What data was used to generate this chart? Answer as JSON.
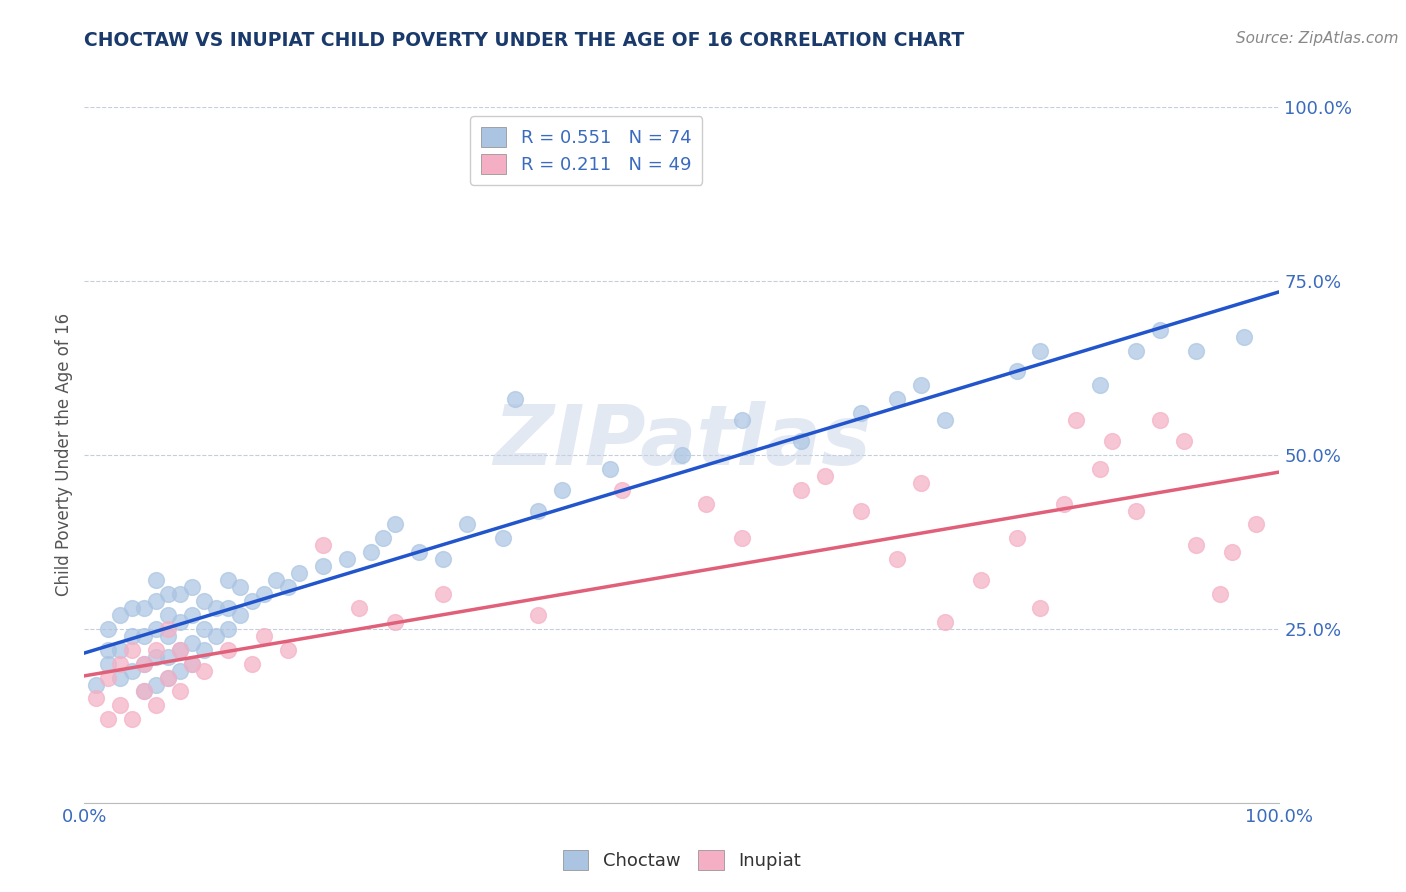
{
  "title": "CHOCTAW VS INUPIAT CHILD POVERTY UNDER THE AGE OF 16 CORRELATION CHART",
  "source": "Source: ZipAtlas.com",
  "ylabel": "Child Poverty Under the Age of 16",
  "xlim": [
    0,
    1
  ],
  "ylim": [
    0,
    1
  ],
  "r_choctaw": 0.551,
  "n_choctaw": 74,
  "r_inupiat": 0.211,
  "n_inupiat": 49,
  "choctaw_color": "#aac4e2",
  "inupiat_color": "#f5afc4",
  "choctaw_line_color": "#2255cc",
  "inupiat_line_color": "#e0607a",
  "title_color": "#1a3a6b",
  "tick_color": "#3a6bbf",
  "watermark": "ZIPatlas",
  "watermark_color": "#c8d4e8",
  "legend_label_choctaw": "Choctaw",
  "legend_label_inupiat": "Inupiat",
  "choctaw_x": [
    0.01,
    0.02,
    0.02,
    0.02,
    0.03,
    0.03,
    0.03,
    0.04,
    0.04,
    0.04,
    0.05,
    0.05,
    0.05,
    0.05,
    0.06,
    0.06,
    0.06,
    0.06,
    0.06,
    0.07,
    0.07,
    0.07,
    0.07,
    0.07,
    0.08,
    0.08,
    0.08,
    0.08,
    0.09,
    0.09,
    0.09,
    0.09,
    0.1,
    0.1,
    0.1,
    0.11,
    0.11,
    0.12,
    0.12,
    0.12,
    0.13,
    0.13,
    0.14,
    0.15,
    0.16,
    0.17,
    0.18,
    0.2,
    0.22,
    0.24,
    0.25,
    0.26,
    0.28,
    0.3,
    0.32,
    0.35,
    0.36,
    0.38,
    0.4,
    0.44,
    0.5,
    0.55,
    0.6,
    0.65,
    0.68,
    0.7,
    0.72,
    0.78,
    0.8,
    0.85,
    0.88,
    0.9,
    0.93,
    0.97
  ],
  "choctaw_y": [
    0.17,
    0.2,
    0.22,
    0.25,
    0.18,
    0.22,
    0.27,
    0.19,
    0.24,
    0.28,
    0.16,
    0.2,
    0.24,
    0.28,
    0.17,
    0.21,
    0.25,
    0.29,
    0.32,
    0.18,
    0.21,
    0.24,
    0.27,
    0.3,
    0.19,
    0.22,
    0.26,
    0.3,
    0.2,
    0.23,
    0.27,
    0.31,
    0.22,
    0.25,
    0.29,
    0.24,
    0.28,
    0.25,
    0.28,
    0.32,
    0.27,
    0.31,
    0.29,
    0.3,
    0.32,
    0.31,
    0.33,
    0.34,
    0.35,
    0.36,
    0.38,
    0.4,
    0.36,
    0.35,
    0.4,
    0.38,
    0.58,
    0.42,
    0.45,
    0.48,
    0.5,
    0.55,
    0.52,
    0.56,
    0.58,
    0.6,
    0.55,
    0.62,
    0.65,
    0.6,
    0.65,
    0.68,
    0.65,
    0.67
  ],
  "inupiat_x": [
    0.01,
    0.02,
    0.02,
    0.03,
    0.03,
    0.04,
    0.04,
    0.05,
    0.05,
    0.06,
    0.06,
    0.07,
    0.07,
    0.08,
    0.08,
    0.09,
    0.1,
    0.12,
    0.14,
    0.15,
    0.17,
    0.2,
    0.23,
    0.26,
    0.3,
    0.38,
    0.45,
    0.52,
    0.55,
    0.6,
    0.62,
    0.65,
    0.68,
    0.7,
    0.72,
    0.75,
    0.78,
    0.8,
    0.82,
    0.83,
    0.85,
    0.86,
    0.88,
    0.9,
    0.92,
    0.93,
    0.95,
    0.96,
    0.98
  ],
  "inupiat_y": [
    0.15,
    0.12,
    0.18,
    0.14,
    0.2,
    0.12,
    0.22,
    0.16,
    0.2,
    0.14,
    0.22,
    0.18,
    0.25,
    0.16,
    0.22,
    0.2,
    0.19,
    0.22,
    0.2,
    0.24,
    0.22,
    0.37,
    0.28,
    0.26,
    0.3,
    0.27,
    0.45,
    0.43,
    0.38,
    0.45,
    0.47,
    0.42,
    0.35,
    0.46,
    0.26,
    0.32,
    0.38,
    0.28,
    0.43,
    0.55,
    0.48,
    0.52,
    0.42,
    0.55,
    0.52,
    0.37,
    0.3,
    0.36,
    0.4
  ]
}
